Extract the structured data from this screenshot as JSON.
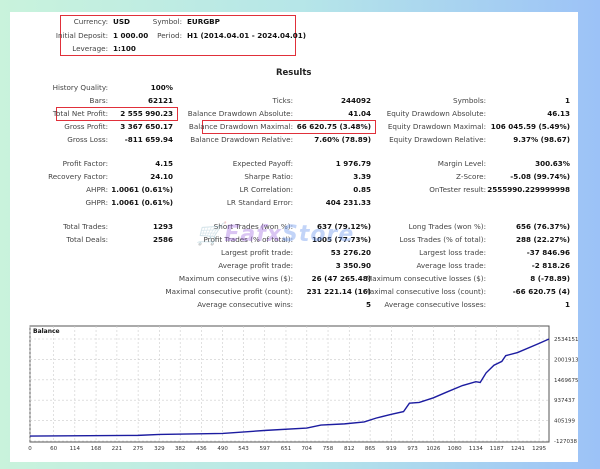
{
  "header": {
    "currency_label": "Currency:",
    "currency": "USD",
    "symbol_label": "Symbol:",
    "symbol": "EURGBP",
    "deposit_label": "Initial Deposit:",
    "deposit": "1 000.00",
    "period_label": "Period:",
    "period": "H1 (2014.04.01 - 2024.04.01)",
    "leverage_label": "Leverage:",
    "leverage": "1:100"
  },
  "results": {
    "title": "Results",
    "rows": [
      [
        {
          "l": "History Quality:",
          "v": "100%"
        },
        {
          "l": "",
          "v": ""
        },
        {
          "l": "",
          "v": ""
        }
      ],
      [
        {
          "l": "Bars:",
          "v": "62121"
        },
        {
          "l": "Ticks:",
          "v": "244092"
        },
        {
          "l": "Symbols:",
          "v": "1"
        }
      ],
      [
        {
          "l": "Total Net Profit:",
          "v": "2 555 990.23"
        },
        {
          "l": "Balance Drawdown Absolute:",
          "v": "41.04"
        },
        {
          "l": "Equity Drawdown Absolute:",
          "v": "46.13"
        }
      ],
      [
        {
          "l": "Gross Profit:",
          "v": "3 367 650.17"
        },
        {
          "l": "Balance Drawdown Maximal:",
          "v": "66 620.75 (3.48%)"
        },
        {
          "l": "Equity Drawdown Maximal:",
          "v": "106 045.59 (5.49%)"
        }
      ],
      [
        {
          "l": "Gross Loss:",
          "v": "-811 659.94"
        },
        {
          "l": "Balance Drawdown Relative:",
          "v": "7.60% (78.89)"
        },
        {
          "l": "Equity Drawdown Relative:",
          "v": "9.37% (98.67)"
        }
      ],
      [
        {
          "l": "Profit Factor:",
          "v": "4.15"
        },
        {
          "l": "Expected Payoff:",
          "v": "1 976.79"
        },
        {
          "l": "Margin Level:",
          "v": "300.63%"
        }
      ],
      [
        {
          "l": "Recovery Factor:",
          "v": "24.10"
        },
        {
          "l": "Sharpe Ratio:",
          "v": "3.39"
        },
        {
          "l": "Z-Score:",
          "v": "-5.08 (99.74%)"
        }
      ],
      [
        {
          "l": "AHPR:",
          "v": "1.0061 (0.61%)"
        },
        {
          "l": "LR Correlation:",
          "v": "0.85"
        },
        {
          "l": "OnTester result:",
          "v": "2555990.229999998"
        }
      ],
      [
        {
          "l": "GHPR:",
          "v": "1.0061 (0.61%)"
        },
        {
          "l": "LR Standard Error:",
          "v": "404 231.33"
        },
        {
          "l": "",
          "v": ""
        }
      ],
      [
        {
          "l": "Total Trades:",
          "v": "1293"
        },
        {
          "l": "Short Trades (won %):",
          "v": "637 (79.12%)"
        },
        {
          "l": "Long Trades (won %):",
          "v": "656 (76.37%)"
        }
      ],
      [
        {
          "l": "Total Deals:",
          "v": "2586"
        },
        {
          "l": "Profit Trades (% of total):",
          "v": "1005 (77.73%)"
        },
        {
          "l": "Loss Trades (% of total):",
          "v": "288 (22.27%)"
        }
      ],
      [
        {
          "l": "",
          "v": ""
        },
        {
          "l": "Largest profit trade:",
          "v": "53 276.20"
        },
        {
          "l": "Largest loss trade:",
          "v": "-37 846.96"
        }
      ],
      [
        {
          "l": "",
          "v": ""
        },
        {
          "l": "Average profit trade:",
          "v": "3 350.90"
        },
        {
          "l": "Average loss trade:",
          "v": "-2 818.26"
        }
      ],
      [
        {
          "l": "",
          "v": ""
        },
        {
          "l": "Maximum consecutive wins ($):",
          "v": "26 (47 265.48)"
        },
        {
          "l": "Maximum consecutive losses ($):",
          "v": "8 (-78.89)"
        }
      ],
      [
        {
          "l": "",
          "v": ""
        },
        {
          "l": "Maximal consecutive profit (count):",
          "v": "231 221.14 (16)"
        },
        {
          "l": "Maximal consecutive loss (count):",
          "v": "-66 620.75 (4)"
        }
      ],
      [
        {
          "l": "",
          "v": ""
        },
        {
          "l": "Average consecutive wins:",
          "v": "5"
        },
        {
          "l": "Average consecutive losses:",
          "v": "1"
        }
      ]
    ],
    "highlight_color": "#e0303a"
  },
  "watermark": {
    "part1": "Eafx",
    "part2": "Store"
  },
  "chart_data": {
    "type": "line",
    "title": "Balance",
    "x_ticks": [
      0,
      60,
      114,
      168,
      221,
      275,
      329,
      382,
      436,
      490,
      543,
      597,
      651,
      704,
      758,
      812,
      865,
      919,
      973,
      1026,
      1080,
      1134,
      1187,
      1241,
      1295
    ],
    "y_ticks": [
      -127038,
      405199,
      937437,
      1469675,
      2001913,
      2534151
    ],
    "xlim": [
      0,
      1320
    ],
    "ylim": [
      -127038,
      2534151
    ],
    "grid": true,
    "line_color": "#1c1ca0",
    "series": [
      {
        "x": [
          0,
          275,
          330,
          490,
          600,
          704,
          740,
          800,
          850,
          880,
          919,
          950,
          965,
          990,
          1026,
          1060,
          1100,
          1134,
          1145,
          1160,
          1180,
          1200,
          1210,
          1240,
          1295,
          1320
        ],
        "y": [
          1000,
          20000,
          45000,
          70000,
          150000,
          210000,
          290000,
          320000,
          370000,
          470000,
          570000,
          640000,
          860000,
          880000,
          1000000,
          1150000,
          1320000,
          1420000,
          1400000,
          1650000,
          1850000,
          1950000,
          2100000,
          2180000,
          2420000,
          2534151
        ]
      }
    ]
  }
}
